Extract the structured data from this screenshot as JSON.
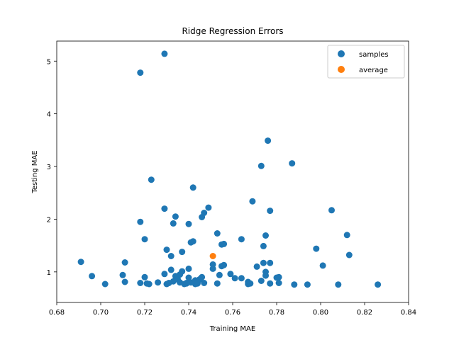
{
  "chart_data": {
    "type": "scatter",
    "title": "Ridge Regression Errors",
    "xlabel": "Training MAE",
    "ylabel": "Testing MAE",
    "xlim": [
      0.68,
      0.84
    ],
    "ylim": [
      0.42,
      5.38
    ],
    "x_ticks": [
      "0.68",
      "0.70",
      "0.72",
      "0.74",
      "0.76",
      "0.78",
      "0.80",
      "0.82",
      "0.84"
    ],
    "y_ticks": [
      "1",
      "2",
      "3",
      "4",
      "5"
    ],
    "grid": false,
    "legend_position": "top-right",
    "series": [
      {
        "name": "samples",
        "color": "#1f77b4",
        "points": [
          [
            0.691,
            1.19
          ],
          [
            0.696,
            0.92
          ],
          [
            0.702,
            0.77
          ],
          [
            0.71,
            0.94
          ],
          [
            0.711,
            0.81
          ],
          [
            0.711,
            1.18
          ],
          [
            0.718,
            4.78
          ],
          [
            0.718,
            1.95
          ],
          [
            0.718,
            0.79
          ],
          [
            0.72,
            1.62
          ],
          [
            0.72,
            0.9
          ],
          [
            0.721,
            0.78
          ],
          [
            0.722,
            0.77
          ],
          [
            0.723,
            2.75
          ],
          [
            0.726,
            0.8
          ],
          [
            0.729,
            5.14
          ],
          [
            0.729,
            2.2
          ],
          [
            0.729,
            0.96
          ],
          [
            0.73,
            1.42
          ],
          [
            0.73,
            0.77
          ],
          [
            0.731,
            0.79
          ],
          [
            0.732,
            1.04
          ],
          [
            0.732,
            1.3
          ],
          [
            0.733,
            0.82
          ],
          [
            0.733,
            1.92
          ],
          [
            0.734,
            0.92
          ],
          [
            0.734,
            2.05
          ],
          [
            0.735,
            0.86
          ],
          [
            0.736,
            0.95
          ],
          [
            0.736,
            0.8
          ],
          [
            0.737,
            1.38
          ],
          [
            0.737,
            1.01
          ],
          [
            0.738,
            0.77
          ],
          [
            0.739,
            0.79
          ],
          [
            0.739,
            0.78
          ],
          [
            0.74,
            1.06
          ],
          [
            0.74,
            1.91
          ],
          [
            0.74,
            0.89
          ],
          [
            0.741,
            0.8
          ],
          [
            0.741,
            1.56
          ],
          [
            0.742,
            1.58
          ],
          [
            0.742,
            2.6
          ],
          [
            0.743,
            0.77
          ],
          [
            0.743,
            0.84
          ],
          [
            0.744,
            0.78
          ],
          [
            0.744,
            0.8
          ],
          [
            0.745,
            0.86
          ],
          [
            0.746,
            0.9
          ],
          [
            0.746,
            2.04
          ],
          [
            0.747,
            2.12
          ],
          [
            0.747,
            0.79
          ],
          [
            0.749,
            2.22
          ],
          [
            0.751,
            1.14
          ],
          [
            0.751,
            1.06
          ],
          [
            0.753,
            0.78
          ],
          [
            0.753,
            1.73
          ],
          [
            0.754,
            0.94
          ],
          [
            0.755,
            1.52
          ],
          [
            0.756,
            1.53
          ],
          [
            0.755,
            1.11
          ],
          [
            0.756,
            1.13
          ],
          [
            0.759,
            0.96
          ],
          [
            0.761,
            0.88
          ],
          [
            0.764,
            1.62
          ],
          [
            0.764,
            0.88
          ],
          [
            0.767,
            0.81
          ],
          [
            0.767,
            0.77
          ],
          [
            0.768,
            0.78
          ],
          [
            0.769,
            2.34
          ],
          [
            0.771,
            1.1
          ],
          [
            0.773,
            3.01
          ],
          [
            0.773,
            0.83
          ],
          [
            0.774,
            1.49
          ],
          [
            0.774,
            1.17
          ],
          [
            0.775,
            1.69
          ],
          [
            0.775,
            1.0
          ],
          [
            0.775,
            0.93
          ],
          [
            0.776,
            3.49
          ],
          [
            0.777,
            2.16
          ],
          [
            0.777,
            0.78
          ],
          [
            0.777,
            1.17
          ],
          [
            0.78,
            0.89
          ],
          [
            0.781,
            0.9
          ],
          [
            0.781,
            0.79
          ],
          [
            0.787,
            3.06
          ],
          [
            0.788,
            0.76
          ],
          [
            0.794,
            0.76
          ],
          [
            0.798,
            1.44
          ],
          [
            0.801,
            1.12
          ],
          [
            0.805,
            2.17
          ],
          [
            0.808,
            0.76
          ],
          [
            0.812,
            1.7
          ],
          [
            0.813,
            1.32
          ],
          [
            0.826,
            0.76
          ]
        ]
      },
      {
        "name": "average",
        "color": "#ff7f0e",
        "points": [
          [
            0.751,
            1.3
          ]
        ]
      }
    ]
  }
}
